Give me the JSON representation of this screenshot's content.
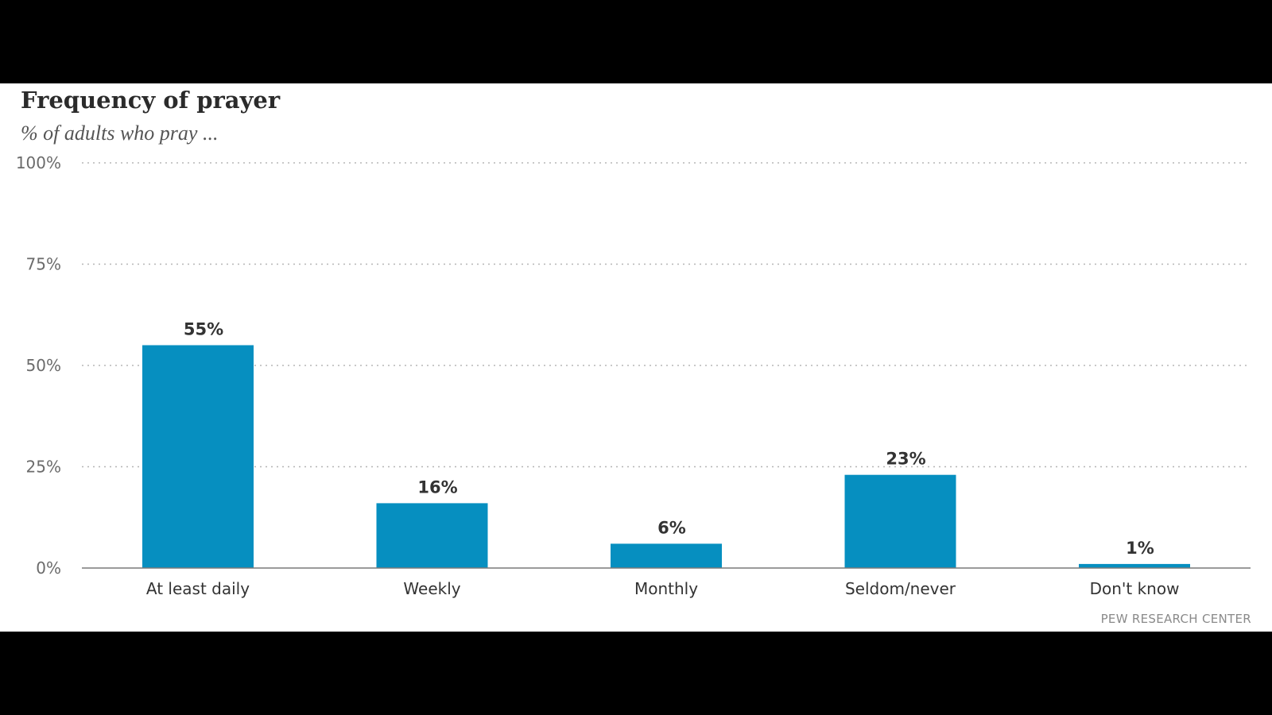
{
  "title": "Frequency of prayer",
  "subtitle": "% of adults who pray ...",
  "source": "PEW RESEARCH CENTER",
  "colors": {
    "bar": "#068fc0",
    "grid": "#b5b5b5",
    "axis": "#7a7a7a",
    "background": "#ffffff",
    "letterbox": "#000000"
  },
  "chart_data": {
    "type": "bar",
    "title": "Frequency of prayer",
    "subtitle": "% of adults who pray ...",
    "xlabel": "",
    "ylabel": "",
    "categories": [
      "At least daily",
      "Weekly",
      "Monthly",
      "Seldom/never",
      "Don't know"
    ],
    "values": [
      55,
      16,
      6,
      23,
      1
    ],
    "data_labels": [
      "55%",
      "16%",
      "6%",
      "23%",
      "1%"
    ],
    "ylim": [
      0,
      100
    ],
    "yticks": [
      0,
      25,
      50,
      75,
      100
    ],
    "ytick_labels": [
      "0%",
      "25%",
      "50%",
      "75%",
      "100%"
    ],
    "grid": true,
    "grid_style": "dotted",
    "legend": "none"
  }
}
